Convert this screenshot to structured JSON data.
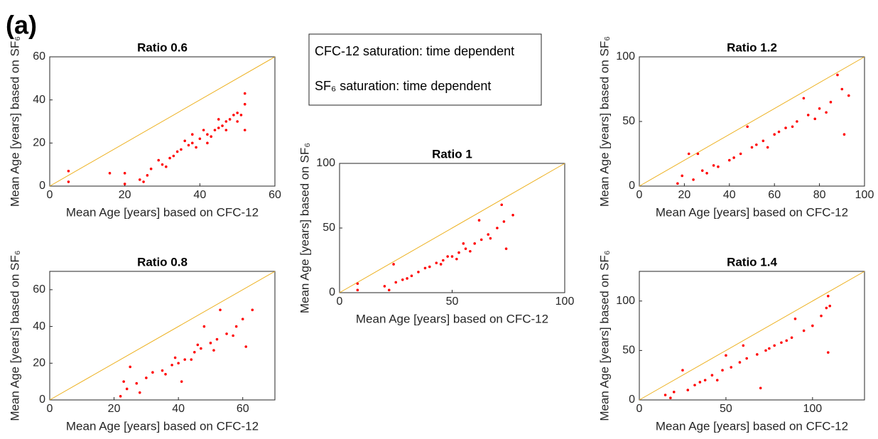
{
  "panel_label": "(a)",
  "annotation_lines": [
    "CFC-12 saturation: time dependent",
    "SF₆ saturation: time dependent"
  ],
  "chart_data": [
    {
      "type": "scatter",
      "title": "Ratio 0.6",
      "xlabel": "Mean Age [years] based on CFC-12",
      "ylabel": "Mean Age [years] based on SF₆",
      "xlim": [
        0,
        60
      ],
      "ylim": [
        0,
        60
      ],
      "xticks": [
        0,
        20,
        40,
        60
      ],
      "yticks": [
        0,
        20,
        40,
        60
      ],
      "color": "#ff0000",
      "reference_line_color": "#edb120",
      "x": [
        25,
        27,
        30,
        33,
        35,
        37,
        38,
        40,
        42,
        44,
        45,
        47,
        48,
        50,
        52,
        5,
        5,
        16,
        20,
        20,
        26,
        29,
        32,
        36,
        39,
        41,
        43,
        46,
        49,
        51,
        52,
        52,
        34,
        31,
        24,
        38,
        42,
        45,
        47,
        50
      ],
      "y": [
        2,
        8,
        10,
        14,
        17,
        19,
        20,
        22,
        24,
        26,
        27,
        30,
        31,
        34,
        38,
        7,
        2,
        6,
        6,
        1,
        5,
        12,
        13,
        21,
        18,
        26,
        23,
        28,
        33,
        33,
        43,
        26,
        16,
        9,
        3,
        24,
        20,
        31,
        26,
        30
      ]
    },
    {
      "type": "scatter",
      "title": "Ratio 0.8",
      "xlabel": "Mean Age [years] based on CFC-12",
      "ylabel": "Mean Age [years] based on SF₆",
      "xlim": [
        0,
        70
      ],
      "ylim": [
        0,
        70
      ],
      "xticks": [
        0,
        20,
        40,
        60
      ],
      "yticks": [
        0,
        20,
        40,
        60
      ],
      "color": "#ff0000",
      "reference_line_color": "#edb120",
      "x": [
        22,
        24,
        27,
        30,
        35,
        38,
        40,
        42,
        45,
        47,
        50,
        52,
        55,
        58,
        60,
        63,
        61,
        53,
        48,
        44,
        41,
        36,
        32,
        28,
        25,
        23,
        57,
        46,
        39,
        51
      ],
      "y": [
        2,
        6,
        9,
        12,
        16,
        19,
        20,
        22,
        26,
        28,
        31,
        33,
        36,
        40,
        44,
        49,
        29,
        49,
        40,
        22,
        10,
        14,
        15,
        4,
        18,
        10,
        35,
        30,
        23,
        27
      ]
    },
    {
      "type": "scatter",
      "title": "Ratio 1",
      "xlabel": "Mean Age [years] based on CFC-12",
      "ylabel": "Mean Age [years] based on SF₆",
      "xlim": [
        0,
        100
      ],
      "ylim": [
        0,
        100
      ],
      "xticks": [
        0,
        50,
        100
      ],
      "yticks": [
        0,
        50,
        100
      ],
      "color": "#ff0000",
      "reference_line_color": "#edb120",
      "x": [
        20,
        8,
        8,
        22,
        25,
        28,
        32,
        35,
        40,
        43,
        46,
        50,
        53,
        56,
        60,
        63,
        66,
        70,
        73,
        77,
        74,
        72,
        62,
        55,
        48,
        45,
        38,
        30,
        24,
        67,
        58,
        52
      ],
      "y": [
        5,
        7,
        2,
        2,
        8,
        10,
        13,
        16,
        20,
        23,
        25,
        28,
        31,
        34,
        38,
        41,
        45,
        50,
        55,
        60,
        34,
        68,
        56,
        38,
        28,
        22,
        19,
        11,
        22,
        42,
        32,
        26
      ]
    },
    {
      "type": "scatter",
      "title": "Ratio 1.2",
      "xlabel": "Mean Age [years] based on CFC-12",
      "ylabel": "Mean Age [years] based on SF₆",
      "xlim": [
        0,
        100
      ],
      "ylim": [
        0,
        100
      ],
      "xticks": [
        0,
        20,
        40,
        60,
        80,
        100
      ],
      "yticks": [
        0,
        50,
        100
      ],
      "color": "#ff0000",
      "reference_line_color": "#edb120",
      "x": [
        17,
        19,
        22,
        26,
        24,
        30,
        35,
        40,
        45,
        50,
        55,
        60,
        65,
        70,
        75,
        80,
        85,
        90,
        93,
        91,
        88,
        73,
        62,
        57,
        48,
        42,
        33,
        28,
        68,
        78,
        83,
        52
      ],
      "y": [
        2,
        8,
        25,
        25,
        5,
        10,
        15,
        20,
        25,
        30,
        35,
        40,
        45,
        50,
        55,
        60,
        65,
        75,
        70,
        40,
        86,
        68,
        42,
        30,
        46,
        22,
        16,
        12,
        46,
        52,
        57,
        32
      ]
    },
    {
      "type": "scatter",
      "title": "Ratio 1.4",
      "xlabel": "Mean Age [years] based on CFC-12",
      "ylabel": "Mean Age [years] based on SF₆",
      "xlim": [
        0,
        130
      ],
      "ylim": [
        0,
        130
      ],
      "xticks": [
        0,
        50,
        100
      ],
      "yticks": [
        0,
        50,
        100
      ],
      "color": "#ff0000",
      "reference_line_color": "#edb120",
      "x": [
        15,
        18,
        20,
        25,
        28,
        32,
        38,
        42,
        48,
        53,
        58,
        62,
        68,
        73,
        78,
        82,
        88,
        95,
        100,
        105,
        110,
        109,
        109,
        108,
        90,
        70,
        60,
        50,
        45,
        35,
        85,
        75
      ],
      "y": [
        5,
        2,
        8,
        30,
        10,
        15,
        20,
        25,
        30,
        33,
        38,
        42,
        46,
        50,
        55,
        58,
        63,
        70,
        75,
        85,
        95,
        105,
        48,
        93,
        82,
        12,
        55,
        45,
        20,
        18,
        60,
        52
      ]
    }
  ]
}
